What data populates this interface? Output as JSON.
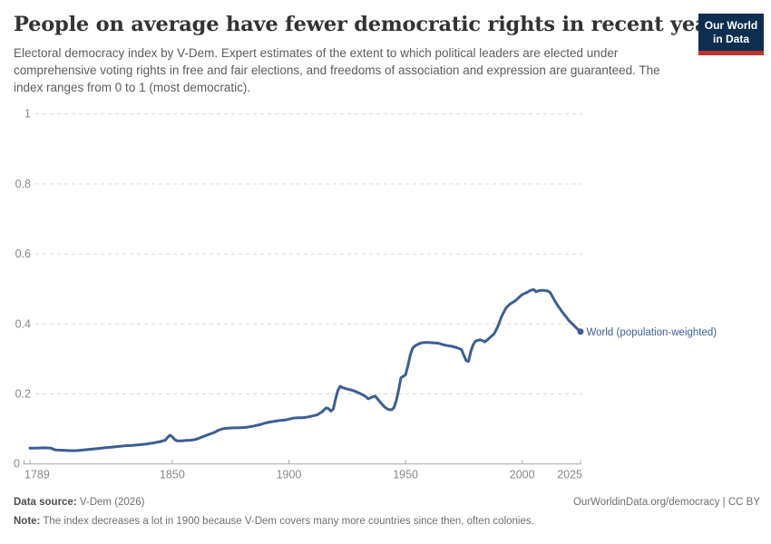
{
  "header": {
    "title": "People on average have fewer democratic rights in recent years",
    "subtitle": "Electoral democracy index by V-Dem. Expert estimates of the extent to which political leaders are elected under comprehensive voting rights in free and fair elections, and freedoms of association and expression are guaranteed. The index ranges from 0 to 1 (most democratic).",
    "logo": {
      "line1": "Our World",
      "line2": "in Data",
      "bg_color": "#0d2e4f",
      "bar_color": "#c0322d"
    }
  },
  "chart_data": {
    "type": "line",
    "title": "People on average have fewer democratic rights in recent years",
    "xlabel": "",
    "ylabel": "",
    "xlim": [
      1789,
      2025
    ],
    "ylim": [
      0,
      1
    ],
    "grid": "horizontal-dashed",
    "legend_position": "end-of-line",
    "x_ticks": [
      {
        "value": 1789,
        "label": "1789"
      },
      {
        "value": 1850,
        "label": "1850"
      },
      {
        "value": 1900,
        "label": "1900"
      },
      {
        "value": 1950,
        "label": "1950"
      },
      {
        "value": 2000,
        "label": "2000"
      },
      {
        "value": 2025,
        "label": "2025"
      }
    ],
    "y_ticks": [
      {
        "value": 0,
        "label": "0"
      },
      {
        "value": 0.2,
        "label": "0.2"
      },
      {
        "value": 0.4,
        "label": "0.4"
      },
      {
        "value": 0.6,
        "label": "0.6"
      },
      {
        "value": 0.8,
        "label": "0.8"
      },
      {
        "value": 1,
        "label": "1"
      }
    ],
    "colors": {
      "grid": "#d9d9d9",
      "axis": "#a9a9a9",
      "tick_label": "#878787"
    },
    "series": [
      {
        "name": "World (population-weighted)",
        "color": "#3e5e92",
        "points": [
          [
            1789,
            0.045
          ],
          [
            1792,
            0.045
          ],
          [
            1795,
            0.046
          ],
          [
            1798,
            0.045
          ],
          [
            1800,
            0.04
          ],
          [
            1803,
            0.039
          ],
          [
            1806,
            0.038
          ],
          [
            1809,
            0.038
          ],
          [
            1812,
            0.04
          ],
          [
            1815,
            0.042
          ],
          [
            1818,
            0.044
          ],
          [
            1821,
            0.046
          ],
          [
            1824,
            0.048
          ],
          [
            1827,
            0.05
          ],
          [
            1830,
            0.052
          ],
          [
            1833,
            0.053
          ],
          [
            1836,
            0.055
          ],
          [
            1839,
            0.057
          ],
          [
            1842,
            0.06
          ],
          [
            1845,
            0.064
          ],
          [
            1847,
            0.068
          ],
          [
            1848,
            0.076
          ],
          [
            1849,
            0.082
          ],
          [
            1850,
            0.078
          ],
          [
            1851,
            0.07
          ],
          [
            1852,
            0.066
          ],
          [
            1854,
            0.066
          ],
          [
            1856,
            0.067
          ],
          [
            1858,
            0.068
          ],
          [
            1860,
            0.07
          ],
          [
            1862,
            0.075
          ],
          [
            1864,
            0.08
          ],
          [
            1866,
            0.085
          ],
          [
            1868,
            0.09
          ],
          [
            1870,
            0.097
          ],
          [
            1872,
            0.101
          ],
          [
            1874,
            0.102
          ],
          [
            1876,
            0.103
          ],
          [
            1878,
            0.103
          ],
          [
            1880,
            0.104
          ],
          [
            1882,
            0.105
          ],
          [
            1884,
            0.107
          ],
          [
            1886,
            0.11
          ],
          [
            1888,
            0.113
          ],
          [
            1890,
            0.117
          ],
          [
            1892,
            0.12
          ],
          [
            1894,
            0.122
          ],
          [
            1896,
            0.124
          ],
          [
            1898,
            0.125
          ],
          [
            1900,
            0.128
          ],
          [
            1902,
            0.131
          ],
          [
            1904,
            0.132
          ],
          [
            1906,
            0.132
          ],
          [
            1908,
            0.134
          ],
          [
            1910,
            0.137
          ],
          [
            1912,
            0.14
          ],
          [
            1914,
            0.148
          ],
          [
            1916,
            0.16
          ],
          [
            1917,
            0.158
          ],
          [
            1918,
            0.151
          ],
          [
            1919,
            0.157
          ],
          [
            1920,
            0.185
          ],
          [
            1921,
            0.21
          ],
          [
            1922,
            0.222
          ],
          [
            1923,
            0.218
          ],
          [
            1925,
            0.214
          ],
          [
            1927,
            0.211
          ],
          [
            1929,
            0.206
          ],
          [
            1931,
            0.2
          ],
          [
            1933,
            0.192
          ],
          [
            1934,
            0.186
          ],
          [
            1936,
            0.192
          ],
          [
            1937,
            0.194
          ],
          [
            1938,
            0.186
          ],
          [
            1939,
            0.178
          ],
          [
            1940,
            0.17
          ],
          [
            1941,
            0.163
          ],
          [
            1942,
            0.158
          ],
          [
            1943,
            0.155
          ],
          [
            1944,
            0.155
          ],
          [
            1945,
            0.16
          ],
          [
            1946,
            0.18
          ],
          [
            1947,
            0.21
          ],
          [
            1948,
            0.246
          ],
          [
            1949,
            0.25
          ],
          [
            1950,
            0.255
          ],
          [
            1951,
            0.28
          ],
          [
            1952,
            0.31
          ],
          [
            1953,
            0.33
          ],
          [
            1954,
            0.337
          ],
          [
            1955,
            0.341
          ],
          [
            1956,
            0.344
          ],
          [
            1957,
            0.346
          ],
          [
            1958,
            0.347
          ],
          [
            1960,
            0.347
          ],
          [
            1962,
            0.346
          ],
          [
            1964,
            0.345
          ],
          [
            1966,
            0.341
          ],
          [
            1968,
            0.338
          ],
          [
            1970,
            0.336
          ],
          [
            1972,
            0.332
          ],
          [
            1974,
            0.327
          ],
          [
            1975,
            0.31
          ],
          [
            1976,
            0.295
          ],
          [
            1977,
            0.293
          ],
          [
            1978,
            0.322
          ],
          [
            1979,
            0.341
          ],
          [
            1980,
            0.351
          ],
          [
            1981,
            0.353
          ],
          [
            1982,
            0.355
          ],
          [
            1983,
            0.352
          ],
          [
            1984,
            0.349
          ],
          [
            1985,
            0.354
          ],
          [
            1986,
            0.36
          ],
          [
            1987,
            0.366
          ],
          [
            1988,
            0.372
          ],
          [
            1989,
            0.385
          ],
          [
            1990,
            0.4
          ],
          [
            1991,
            0.419
          ],
          [
            1992,
            0.432
          ],
          [
            1993,
            0.445
          ],
          [
            1994,
            0.452
          ],
          [
            1995,
            0.458
          ],
          [
            1996,
            0.462
          ],
          [
            1997,
            0.466
          ],
          [
            1998,
            0.472
          ],
          [
            1999,
            0.478
          ],
          [
            2000,
            0.484
          ],
          [
            2001,
            0.487
          ],
          [
            2002,
            0.49
          ],
          [
            2003,
            0.494
          ],
          [
            2004,
            0.497
          ],
          [
            2005,
            0.498
          ],
          [
            2006,
            0.492
          ],
          [
            2007,
            0.495
          ],
          [
            2008,
            0.496
          ],
          [
            2009,
            0.496
          ],
          [
            2010,
            0.495
          ],
          [
            2011,
            0.494
          ],
          [
            2012,
            0.49
          ],
          [
            2013,
            0.478
          ],
          [
            2014,
            0.466
          ],
          [
            2015,
            0.455
          ],
          [
            2016,
            0.445
          ],
          [
            2017,
            0.436
          ],
          [
            2018,
            0.427
          ],
          [
            2019,
            0.419
          ],
          [
            2020,
            0.41
          ],
          [
            2021,
            0.403
          ],
          [
            2022,
            0.397
          ],
          [
            2023,
            0.39
          ],
          [
            2024,
            0.384
          ],
          [
            2025,
            0.378
          ]
        ]
      }
    ]
  },
  "footer": {
    "source_label": "Data source:",
    "source_value": " V-Dem (2026)",
    "citation": "OurWorldinData.org/democracy | CC BY",
    "note_label": "Note:",
    "note_value": " The index decreases a lot in 1900 because V-Dem covers many more countries since then, often colonies."
  }
}
